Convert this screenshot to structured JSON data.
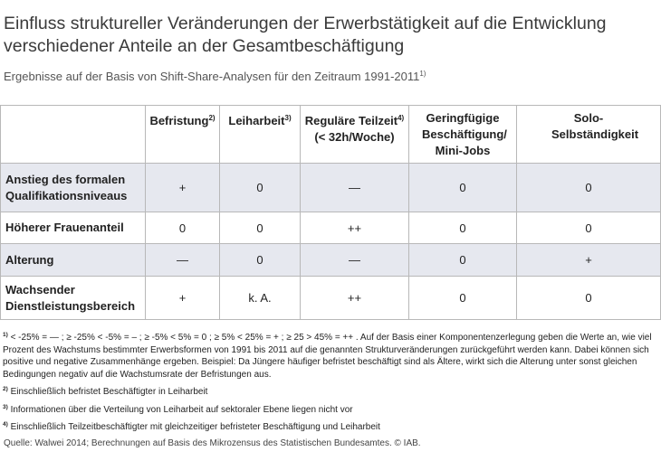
{
  "title": "Einfluss struktureller Veränderungen der Erwerbstätigkeit auf die Entwicklung verschiedener Anteile an der Gesamtbeschäftigung",
  "subtitle": "Ergebnisse auf der Basis von Shift-Share-Analysen für den Zeitraum 1991-2011",
  "subtitle_sup": "1)",
  "table": {
    "headers": [
      {
        "label": "Befristung",
        "sup": "2)"
      },
      {
        "label": "Leiharbeit",
        "sup": "3)"
      },
      {
        "label": "Reguläre Teilzeit",
        "sup": "4)",
        "line2": "(< 32h/Woche)"
      },
      {
        "label": "Geringfügige Beschäftigung/ Mini-Jobs"
      },
      {
        "label": "Solo-Selbständigkeit"
      }
    ],
    "rows": [
      {
        "label": "Anstieg des formalen Qualifikationsniveaus",
        "cells": [
          "+",
          "0",
          "—",
          "0",
          "0"
        ]
      },
      {
        "label": "Höherer Frauenanteil",
        "cells": [
          "0",
          "0",
          "++",
          "0",
          "0"
        ]
      },
      {
        "label": "Alterung",
        "cells": [
          "—",
          "0",
          "—",
          "0",
          "+"
        ]
      },
      {
        "label": "Wachsender Dienstleistungsbereich",
        "cells": [
          "+",
          "k. A.",
          "++",
          "0",
          "0"
        ]
      }
    ]
  },
  "notes": [
    {
      "sup": "1)",
      "text": "< -25% = — ; ≥ -25% < -5% = – ; ≥ -5% < 5% = 0 ; ≥ 5% < 25% = + ; ≥ 25 > 45% = ++ . Auf der Basis einer Komponentenzerlegung geben die Werte an, wie viel Prozent des Wachstums bestimmter Erwerbsformen von 1991 bis 2011 auf die genannten Strukturveränderungen zurückgeführt werden kann. Dabei können sich positive und negative Zusammenhänge ergeben. Beispiel: Da Jüngere häufiger befristet beschäftigt sind als Ältere, wirkt sich die Alterung unter sonst gleichen Bedingungen negativ auf die Wachstumsrate der Befristungen aus."
    },
    {
      "sup": "2)",
      "text": "Einschließlich befristet Beschäftigter in Leiharbeit"
    },
    {
      "sup": "3)",
      "text": "Informationen über die Verteilung von Leiharbeit auf sektoraler Ebene liegen nicht vor"
    },
    {
      "sup": "4)",
      "text": "Einschließlich Teilzeitbeschäftigter mit gleichzeitiger befristeter Beschäftigung und Leiharbeit"
    }
  ],
  "source": "Quelle: Walwei 2014; Berechnungen auf Basis des Mikrozensus des Statistischen Bundesamtes. © IAB."
}
